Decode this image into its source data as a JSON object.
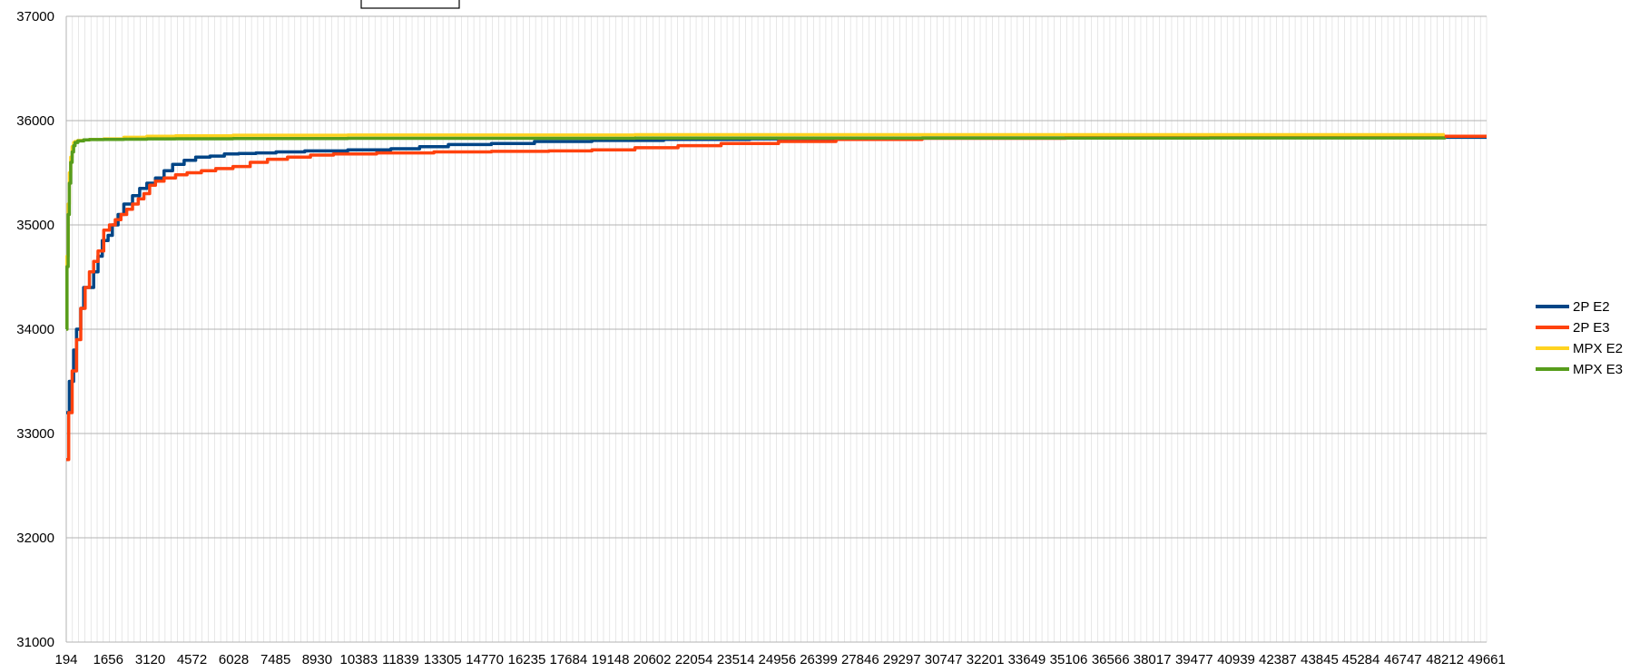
{
  "chart_data": {
    "type": "line",
    "title": "",
    "xlabel": "",
    "ylabel": "",
    "ylim": [
      31000,
      37000
    ],
    "y_ticks": [
      "31000",
      "32000",
      "33000",
      "34000",
      "35000",
      "36000",
      "37000"
    ],
    "x_max": 49661,
    "x_tick_values": [
      194,
      1656,
      3120,
      4572,
      6028,
      7485,
      8930,
      10383,
      11839,
      13305,
      14770,
      16235,
      17684,
      19148,
      20602,
      22054,
      23514,
      24956,
      26399,
      27846,
      29297,
      30747,
      32201,
      33649,
      35106,
      36566,
      38017,
      39477,
      40939,
      42387,
      43845,
      45284,
      46747,
      48212,
      49661
    ],
    "x_tick_labels": [
      "194",
      "1656",
      "3120",
      "4572",
      "6028",
      "7485",
      "8930",
      "10383",
      "11839",
      "13305",
      "14770",
      "16235",
      "17684",
      "19148",
      "20602",
      "22054",
      "23514",
      "24956",
      "26399",
      "27846",
      "29297",
      "30747",
      "32201",
      "33649",
      "35106",
      "36566",
      "38017",
      "39477",
      "40939",
      "42387",
      "43845",
      "45284",
      "46747",
      "48212",
      "49661"
    ],
    "grid": true,
    "legend_position": "right",
    "series": [
      {
        "name": "2P E2",
        "color": "#004586",
        "x": [
          194,
          300,
          450,
          550,
          700,
          800,
          1000,
          1150,
          1300,
          1450,
          1650,
          1800,
          2000,
          2200,
          2500,
          2750,
          3000,
          3300,
          3600,
          3900,
          4300,
          4700,
          5200,
          5700,
          6200,
          6800,
          7500,
          8500,
          10000,
          11500,
          12500,
          13500,
          15000,
          16500,
          18500,
          21000,
          24000,
          27000,
          30000,
          35000,
          40000,
          45000,
          49661
        ],
        "values": [
          33200,
          33500,
          33800,
          34000,
          34200,
          34400,
          34400,
          34550,
          34700,
          34850,
          34900,
          35000,
          35100,
          35200,
          35280,
          35350,
          35400,
          35450,
          35520,
          35580,
          35620,
          35650,
          35660,
          35680,
          35685,
          35690,
          35700,
          35710,
          35720,
          35730,
          35750,
          35770,
          35780,
          35800,
          35810,
          35820,
          35825,
          35830,
          35835,
          35838,
          35840,
          35840,
          35840
        ]
      },
      {
        "name": "2P E3",
        "color": "#ff420e",
        "x": [
          194,
          280,
          400,
          550,
          700,
          850,
          1000,
          1150,
          1300,
          1500,
          1700,
          1900,
          2100,
          2300,
          2500,
          2700,
          2900,
          3100,
          3300,
          3600,
          4000,
          4400,
          4900,
          5400,
          6000,
          6600,
          7200,
          7900,
          8700,
          9500,
          11000,
          13000,
          15000,
          17000,
          18500,
          20000,
          21500,
          23000,
          25000,
          27000,
          30000,
          35000,
          40000,
          45000,
          49661
        ],
        "values": [
          32750,
          33200,
          33600,
          33900,
          34200,
          34400,
          34550,
          34650,
          34750,
          34950,
          35000,
          35050,
          35100,
          35150,
          35200,
          35250,
          35300,
          35380,
          35420,
          35450,
          35480,
          35500,
          35520,
          35540,
          35560,
          35600,
          35630,
          35650,
          35670,
          35680,
          35690,
          35700,
          35705,
          35710,
          35720,
          35740,
          35760,
          35780,
          35800,
          35820,
          35830,
          35840,
          35845,
          35850,
          35850
        ]
      },
      {
        "name": "MPX E2",
        "color": "#ffd320",
        "x": [
          194,
          220,
          260,
          300,
          350,
          400,
          450,
          500,
          600,
          800,
          1000,
          1500,
          2200,
          3000,
          4000,
          6000,
          10000,
          20000,
          30000,
          40000,
          48200
        ],
        "values": [
          34000,
          34700,
          35200,
          35500,
          35650,
          35750,
          35790,
          35800,
          35810,
          35815,
          35820,
          35825,
          35840,
          35850,
          35855,
          35860,
          35862,
          35865,
          35865,
          35865,
          35865
        ]
      },
      {
        "name": "MPX E3",
        "color": "#579d1c",
        "x": [
          194,
          220,
          260,
          300,
          350,
          400,
          450,
          500,
          600,
          800,
          1000,
          1500,
          2200,
          3000,
          4000,
          6000,
          10000,
          20000,
          30000,
          40000,
          48200
        ],
        "values": [
          34000,
          34600,
          35100,
          35400,
          35600,
          35700,
          35760,
          35790,
          35805,
          35815,
          35818,
          35820,
          35822,
          35825,
          35826,
          35828,
          35830,
          35832,
          35833,
          35834,
          35835
        ]
      }
    ]
  }
}
